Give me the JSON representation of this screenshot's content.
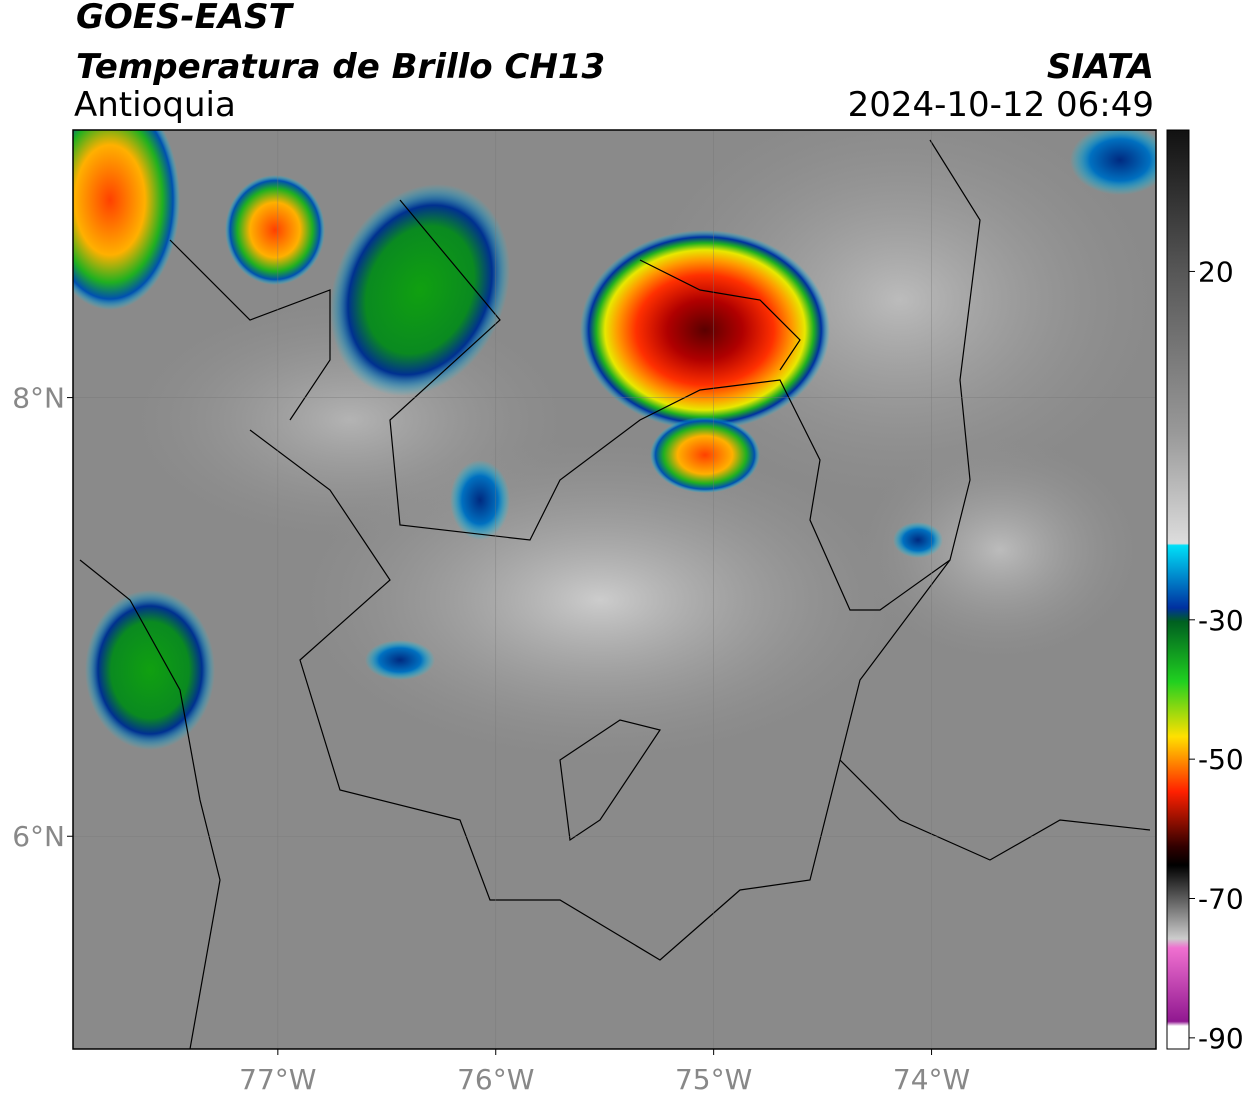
{
  "header": {
    "satellite": "GOES-EAST",
    "title": "Temperatura de Brillo CH13",
    "region": "Antioquia",
    "source": "SIATA",
    "datetime": "2024-10-12 06:49"
  },
  "map": {
    "xlim": [
      -77.94,
      -72.97
    ],
    "ylim": [
      5.03,
      9.22
    ],
    "xticks": [
      {
        "value": -77,
        "label": "77°W"
      },
      {
        "value": -76,
        "label": "76°W"
      },
      {
        "value": -75,
        "label": "75°W"
      },
      {
        "value": -74,
        "label": "74°W"
      }
    ],
    "yticks": [
      {
        "value": 8,
        "label": "8°N"
      },
      {
        "value": 6,
        "label": "6°N"
      }
    ]
  },
  "colorbar": {
    "lim": [
      -91.6,
      40.3
    ],
    "ticks": [
      20,
      -30,
      -50,
      -70,
      -90
    ]
  }
}
